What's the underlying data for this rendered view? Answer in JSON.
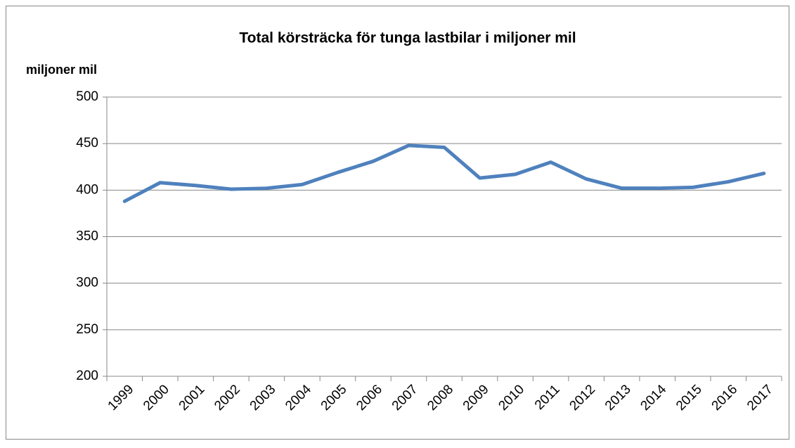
{
  "chart_data": {
    "type": "line",
    "title": "Total körsträcka för tunga lastbilar i miljoner mil",
    "y_label": "miljoner mil",
    "categories": [
      "1999",
      "2000",
      "2001",
      "2002",
      "2003",
      "2004",
      "2005",
      "2006",
      "2007",
      "2008",
      "2009",
      "2010",
      "2011",
      "2012",
      "2013",
      "2014",
      "2015",
      "2016",
      "2017"
    ],
    "series": [
      {
        "name": "Total körsträcka",
        "color": "#4f81bd",
        "values": [
          388,
          408,
          405,
          401,
          402,
          406,
          419,
          431,
          448,
          446,
          413,
          417,
          430,
          412,
          402,
          402,
          403,
          409,
          418
        ]
      }
    ],
    "ylim": [
      200,
      500
    ],
    "yticks": [
      200,
      250,
      300,
      350,
      400,
      450,
      500
    ],
    "grid": true
  }
}
